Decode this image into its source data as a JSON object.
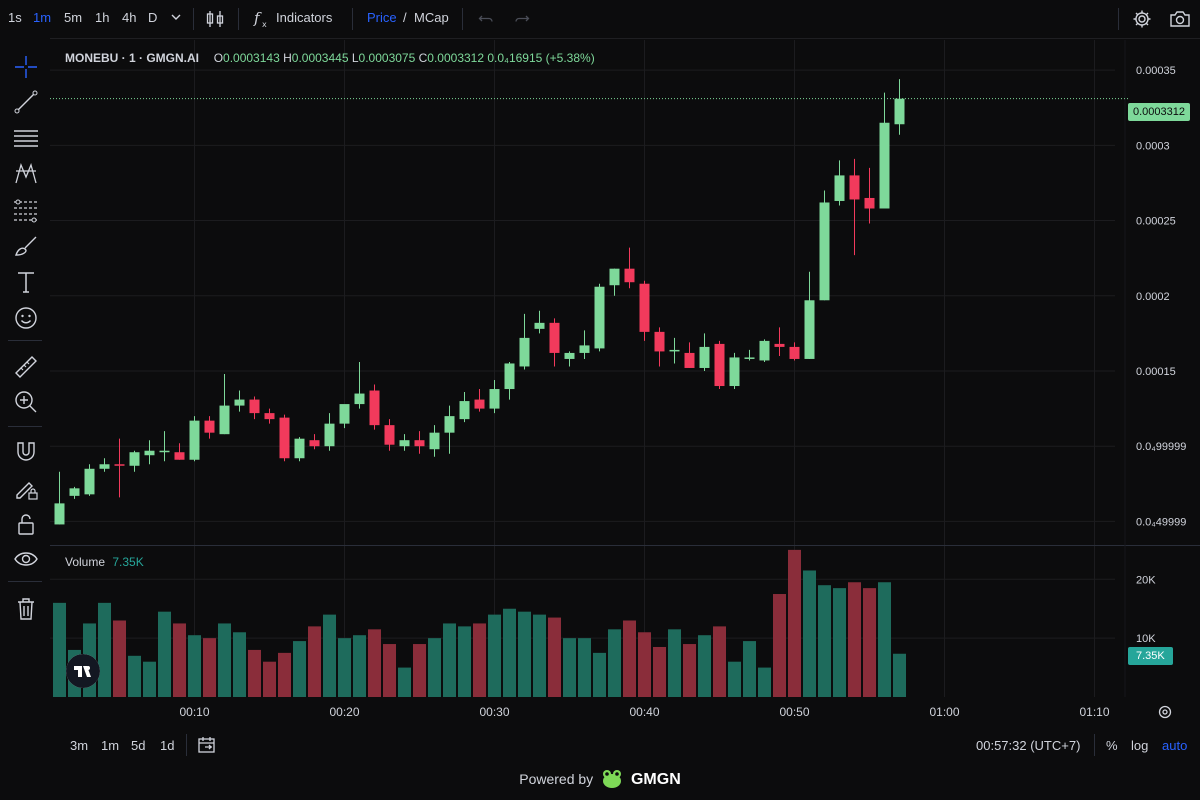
{
  "timeframes": [
    "1s",
    "1m",
    "5m",
    "1h",
    "4h",
    "D"
  ],
  "active_timeframe": "1m",
  "indicators_label": "Indicators",
  "price_toggle": {
    "price": "Price",
    "sep": "/",
    "mcap": "MCap"
  },
  "legend": {
    "symbol": "MONEBU · 1 · GMGN.AI",
    "o_label": "O",
    "o": "0.0003143",
    "h_label": "H",
    "h": "0.0003445",
    "l_label": "L",
    "l": "0.0003075",
    "c_label": "C",
    "c": "0.0003312",
    "change": "0.0₄16915 (+5.38%)"
  },
  "volume_legend": {
    "label": "Volume",
    "value": "7.35K"
  },
  "price_axis_labels": [
    "0.00035",
    "0.0003",
    "0.00025",
    "0.0002",
    "0.00015",
    "0.0₄99999",
    "0.0₄49999"
  ],
  "volume_axis_labels": [
    "20K",
    "10K"
  ],
  "last_price_tag": "0.0003312",
  "last_volume_tag": "7.35K",
  "time_axis_labels": [
    "00:10",
    "00:20",
    "00:30",
    "00:40",
    "00:50",
    "01:00",
    "01:10"
  ],
  "range_buttons": [
    "3m",
    "1m",
    "5d",
    "1d"
  ],
  "clock": "00:57:32 (UTC+7)",
  "scale_buttons": {
    "percent": "%",
    "log": "log",
    "auto": "auto"
  },
  "powered_by": "Powered by",
  "brand": "GMGN",
  "colors": {
    "up": "#7ed99a",
    "down": "#f23a5c",
    "vol_up": "#1e6b5c",
    "vol_down": "#8a2d3a",
    "accent": "#2962ff"
  },
  "chart_data": {
    "type": "candlestick",
    "y_range": [
      3.5e-05,
      0.00037
    ],
    "volume_range": [
      0,
      26000
    ],
    "time_ticks": {
      "00:10": 9,
      "00:20": 19,
      "00:30": 29,
      "00:40": 39,
      "00:50": 49,
      "01:00": 59,
      "01:10": 69
    },
    "candles": [
      {
        "t": 0,
        "o": 4.8e-05,
        "h": 8.3e-05,
        "l": 4.8e-05,
        "c": 6.2e-05,
        "v": 16000
      },
      {
        "t": 1,
        "o": 6.7e-05,
        "h": 7.3e-05,
        "l": 6.5e-05,
        "c": 7.2e-05,
        "v": 8000
      },
      {
        "t": 2,
        "o": 6.8e-05,
        "h": 8.8e-05,
        "l": 6.7e-05,
        "c": 8.5e-05,
        "v": 12500
      },
      {
        "t": 3,
        "o": 8.5e-05,
        "h": 9.2e-05,
        "l": 8.3e-05,
        "c": 8.8e-05,
        "v": 16000
      },
      {
        "t": 4,
        "o": 8.8e-05,
        "h": 0.000105,
        "l": 6.6e-05,
        "c": 8.7e-05,
        "v": 13000
      },
      {
        "t": 5,
        "o": 8.7e-05,
        "h": 9.7e-05,
        "l": 8.3e-05,
        "c": 9.6e-05,
        "v": 7000
      },
      {
        "t": 6,
        "o": 9.4e-05,
        "h": 0.000104,
        "l": 8.8e-05,
        "c": 9.7e-05,
        "v": 6000
      },
      {
        "t": 7,
        "o": 9.6e-05,
        "h": 0.00011,
        "l": 9e-05,
        "c": 9.7e-05,
        "v": 14500
      },
      {
        "t": 8,
        "o": 9.6e-05,
        "h": 0.000102,
        "l": 9.1e-05,
        "c": 9.1e-05,
        "v": 12500
      },
      {
        "t": 9,
        "o": 9.1e-05,
        "h": 0.00012,
        "l": 9e-05,
        "c": 0.000117,
        "v": 10500
      },
      {
        "t": 10,
        "o": 0.000117,
        "h": 0.00012,
        "l": 0.000105,
        "c": 0.000109,
        "v": 10000
      },
      {
        "t": 11,
        "o": 0.000108,
        "h": 0.000148,
        "l": 0.000108,
        "c": 0.000127,
        "v": 12500
      },
      {
        "t": 12,
        "o": 0.000127,
        "h": 0.000137,
        "l": 0.000123,
        "c": 0.000131,
        "v": 11000
      },
      {
        "t": 13,
        "o": 0.000131,
        "h": 0.000133,
        "l": 0.000118,
        "c": 0.000122,
        "v": 8000
      },
      {
        "t": 14,
        "o": 0.000122,
        "h": 0.000125,
        "l": 0.000115,
        "c": 0.000118,
        "v": 6000
      },
      {
        "t": 15,
        "o": 0.000119,
        "h": 0.000121,
        "l": 9e-05,
        "c": 9.2e-05,
        "v": 7500
      },
      {
        "t": 16,
        "o": 9.2e-05,
        "h": 0.000106,
        "l": 9e-05,
        "c": 0.000105,
        "v": 9500
      },
      {
        "t": 17,
        "o": 0.000104,
        "h": 0.000108,
        "l": 9.8e-05,
        "c": 0.0001,
        "v": 12000
      },
      {
        "t": 18,
        "o": 0.0001,
        "h": 0.000122,
        "l": 9.7e-05,
        "c": 0.000115,
        "v": 14000
      },
      {
        "t": 19,
        "o": 0.000115,
        "h": 0.000127,
        "l": 0.000112,
        "c": 0.000128,
        "v": 10000
      },
      {
        "t": 20,
        "o": 0.000128,
        "h": 0.000156,
        "l": 0.000125,
        "c": 0.000135,
        "v": 10500
      },
      {
        "t": 21,
        "o": 0.000137,
        "h": 0.000141,
        "l": 0.000111,
        "c": 0.000114,
        "v": 11500
      },
      {
        "t": 22,
        "o": 0.000114,
        "h": 0.000118,
        "l": 9.7e-05,
        "c": 0.000101,
        "v": 9000
      },
      {
        "t": 23,
        "o": 0.0001,
        "h": 0.000108,
        "l": 9.7e-05,
        "c": 0.000104,
        "v": 5000
      },
      {
        "t": 24,
        "o": 0.000104,
        "h": 0.00011,
        "l": 9.5e-05,
        "c": 0.0001,
        "v": 9000
      },
      {
        "t": 25,
        "o": 9.8e-05,
        "h": 0.000114,
        "l": 9.3e-05,
        "c": 0.000109,
        "v": 10000
      },
      {
        "t": 26,
        "o": 0.000109,
        "h": 0.000127,
        "l": 9.5e-05,
        "c": 0.00012,
        "v": 12500
      },
      {
        "t": 27,
        "o": 0.000118,
        "h": 0.000136,
        "l": 0.000116,
        "c": 0.00013,
        "v": 12000
      },
      {
        "t": 28,
        "o": 0.000131,
        "h": 0.000138,
        "l": 0.000123,
        "c": 0.000125,
        "v": 12500
      },
      {
        "t": 29,
        "o": 0.000125,
        "h": 0.000144,
        "l": 0.000122,
        "c": 0.000138,
        "v": 14000
      },
      {
        "t": 30,
        "o": 0.000138,
        "h": 0.000156,
        "l": 0.000131,
        "c": 0.000155,
        "v": 15000
      },
      {
        "t": 31,
        "o": 0.000153,
        "h": 0.000188,
        "l": 0.000151,
        "c": 0.000172,
        "v": 14500
      },
      {
        "t": 32,
        "o": 0.000178,
        "h": 0.00019,
        "l": 0.000175,
        "c": 0.000182,
        "v": 14000
      },
      {
        "t": 33,
        "o": 0.000182,
        "h": 0.000185,
        "l": 0.000153,
        "c": 0.000162,
        "v": 13500
      },
      {
        "t": 34,
        "o": 0.000158,
        "h": 0.000163,
        "l": 0.000153,
        "c": 0.000162,
        "v": 10000
      },
      {
        "t": 35,
        "o": 0.000162,
        "h": 0.000177,
        "l": 0.000158,
        "c": 0.000167,
        "v": 10000
      },
      {
        "t": 36,
        "o": 0.000165,
        "h": 0.000208,
        "l": 0.000163,
        "c": 0.000206,
        "v": 7500
      },
      {
        "t": 37,
        "o": 0.000207,
        "h": 0.000218,
        "l": 0.0002,
        "c": 0.000218,
        "v": 11500
      },
      {
        "t": 38,
        "o": 0.000218,
        "h": 0.000232,
        "l": 0.000205,
        "c": 0.000209,
        "v": 13000
      },
      {
        "t": 39,
        "o": 0.000208,
        "h": 0.00021,
        "l": 0.00017,
        "c": 0.000176,
        "v": 11000
      },
      {
        "t": 40,
        "o": 0.000176,
        "h": 0.000179,
        "l": 0.000153,
        "c": 0.000163,
        "v": 8500
      },
      {
        "t": 41,
        "o": 0.000163,
        "h": 0.000172,
        "l": 0.000155,
        "c": 0.000164,
        "v": 11500
      },
      {
        "t": 42,
        "o": 0.000162,
        "h": 0.000169,
        "l": 0.000152,
        "c": 0.000152,
        "v": 9000
      },
      {
        "t": 43,
        "o": 0.000152,
        "h": 0.000175,
        "l": 0.00015,
        "c": 0.000166,
        "v": 10500
      },
      {
        "t": 44,
        "o": 0.000168,
        "h": 0.00017,
        "l": 0.000138,
        "c": 0.00014,
        "v": 12000
      },
      {
        "t": 45,
        "o": 0.00014,
        "h": 0.000162,
        "l": 0.000138,
        "c": 0.000159,
        "v": 6000
      },
      {
        "t": 46,
        "o": 0.000159,
        "h": 0.000164,
        "l": 0.000157,
        "c": 0.000159,
        "v": 9500
      },
      {
        "t": 47,
        "o": 0.000157,
        "h": 0.000171,
        "l": 0.000156,
        "c": 0.00017,
        "v": 5000
      },
      {
        "t": 48,
        "o": 0.000168,
        "h": 0.000179,
        "l": 0.00016,
        "c": 0.000166,
        "v": 17500
      },
      {
        "t": 49,
        "o": 0.000166,
        "h": 0.000169,
        "l": 0.000157,
        "c": 0.000158,
        "v": 25000
      },
      {
        "t": 50,
        "o": 0.000158,
        "h": 0.000216,
        "l": 0.000158,
        "c": 0.000197,
        "v": 21500
      },
      {
        "t": 51,
        "o": 0.000197,
        "h": 0.00027,
        "l": 0.000197,
        "c": 0.000262,
        "v": 19000
      },
      {
        "t": 52,
        "o": 0.000263,
        "h": 0.00029,
        "l": 0.00026,
        "c": 0.00028,
        "v": 18500
      },
      {
        "t": 53,
        "o": 0.00028,
        "h": 0.000291,
        "l": 0.000227,
        "c": 0.000264,
        "v": 19500
      },
      {
        "t": 54,
        "o": 0.000265,
        "h": 0.000285,
        "l": 0.000248,
        "c": 0.000258,
        "v": 18500
      },
      {
        "t": 55,
        "o": 0.000258,
        "h": 0.000335,
        "l": 0.000258,
        "c": 0.000315,
        "v": 19500
      },
      {
        "t": 56,
        "o": 0.000314,
        "h": 0.000344,
        "l": 0.000307,
        "c": 0.000331,
        "v": 7350
      }
    ]
  }
}
